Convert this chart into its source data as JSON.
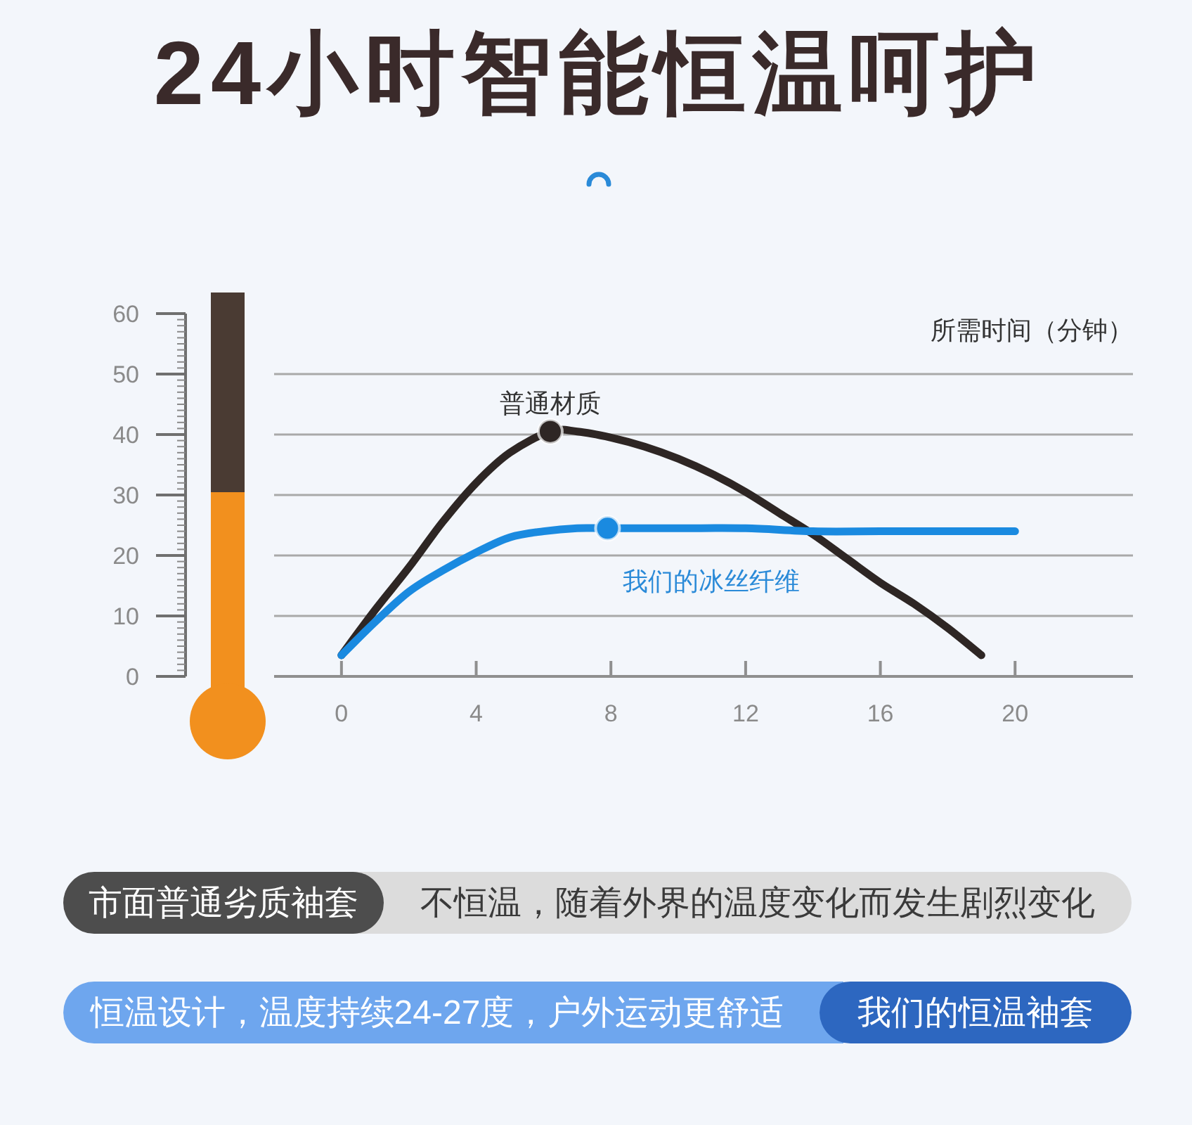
{
  "chart_data": {
    "type": "line",
    "title": "24小时智能恒温呵护",
    "xlabel": "所需时间（分钟）",
    "xlim": [
      -2,
      23.5
    ],
    "xticks": [
      0,
      4,
      8,
      12,
      16,
      20
    ],
    "ylim": [
      0,
      60
    ],
    "yticks": [
      0,
      10,
      20,
      30,
      40,
      50,
      60
    ],
    "grid": "y",
    "series": [
      {
        "name": "普通材质",
        "type": "line",
        "color": "#2e2624",
        "x": [
          0,
          1,
          2,
          3,
          4,
          5,
          6.2,
          7,
          8,
          9,
          10,
          11,
          12,
          13,
          14,
          15,
          16,
          17,
          18,
          19
        ],
        "values": [
          3.5,
          11,
          18,
          25.5,
          32,
          37,
          40.5,
          40.5,
          39.5,
          38,
          36,
          33.5,
          30.5,
          27,
          23.5,
          19.5,
          15.5,
          12,
          8,
          3.5
        ]
      },
      {
        "name": "我们的冰丝纤维",
        "type": "line",
        "color": "#1a8ae0",
        "x": [
          0,
          1,
          2,
          3,
          4,
          5,
          6,
          7,
          7.9,
          10,
          12,
          14,
          16,
          18,
          20
        ],
        "values": [
          3.5,
          9,
          14,
          17.5,
          20.5,
          23,
          24,
          24.5,
          24.5,
          24.5,
          24.5,
          24,
          24,
          24,
          24
        ]
      },
      {
        "type": "scatter",
        "marker": "circle",
        "color": "#2e2624",
        "x": [
          6.2
        ],
        "values": [
          40.5
        ]
      },
      {
        "type": "scatter",
        "marker": "circle",
        "color": "#1a8ae0",
        "x": [
          7.9
        ],
        "values": [
          24.5
        ]
      }
    ],
    "annotations": [
      "市面普通劣质袖套",
      "不恒温，随着外界的温度变化而发生剧烈变化",
      "恒温设计，温度持续24-27度，户外运动更舒适",
      "我们的恒温袖套"
    ]
  }
}
